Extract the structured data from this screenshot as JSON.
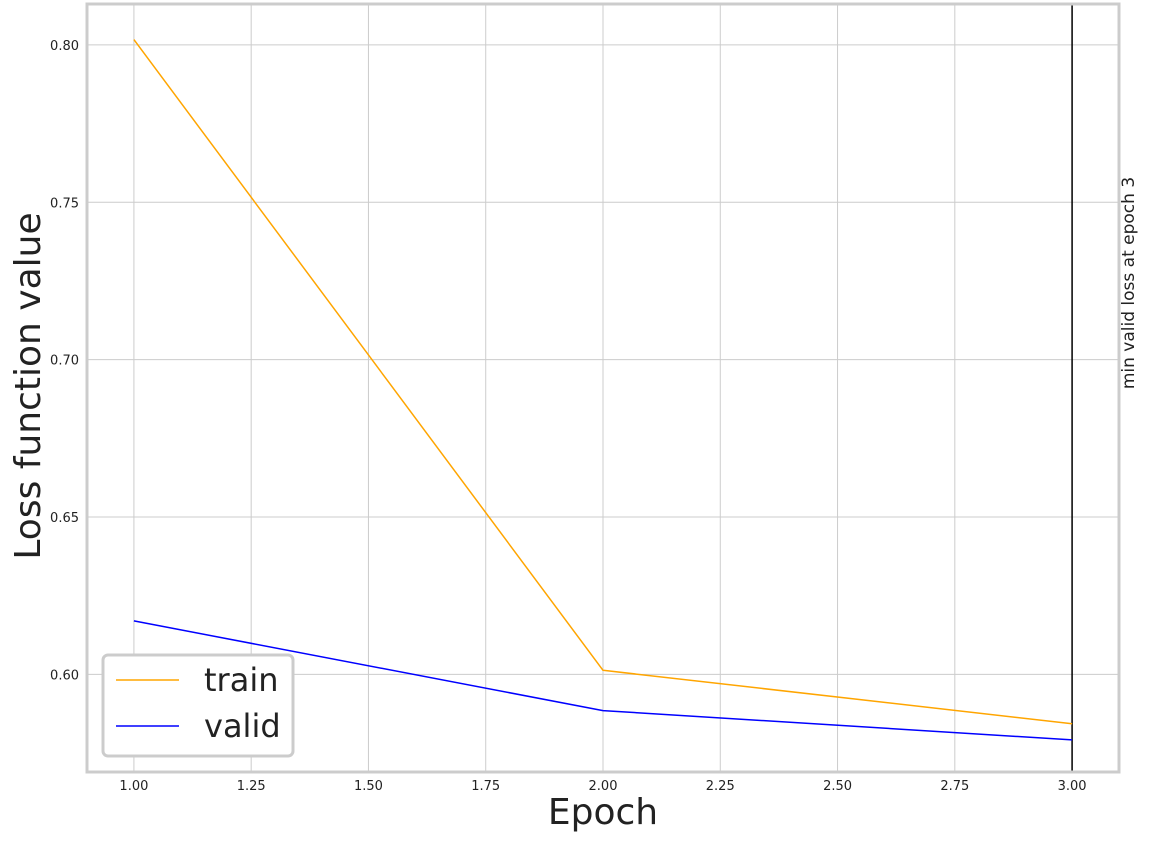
{
  "chart_data": {
    "type": "line",
    "xlabel": "Epoch",
    "ylabel": "Loss function value",
    "xlim": [
      0.9,
      3.1
    ],
    "ylim": [
      0.569,
      0.813
    ],
    "xticks": [
      "1.00",
      "1.25",
      "1.50",
      "1.75",
      "2.00",
      "2.25",
      "2.50",
      "2.75",
      "3.00"
    ],
    "yticks": [
      "0.60",
      "0.65",
      "0.70",
      "0.75",
      "0.80"
    ],
    "x": [
      1,
      2,
      3
    ],
    "series": [
      {
        "name": "train",
        "color": "#ffa500",
        "values": [
          0.8017,
          0.6013,
          0.5843
        ]
      },
      {
        "name": "valid",
        "color": "#0000ff",
        "values": [
          0.617,
          0.5885,
          0.5792
        ]
      }
    ],
    "vline": {
      "x": 3,
      "color": "#000000",
      "label": "min valid loss at epoch 3"
    },
    "grid": true,
    "legend_position": "lower-left"
  }
}
